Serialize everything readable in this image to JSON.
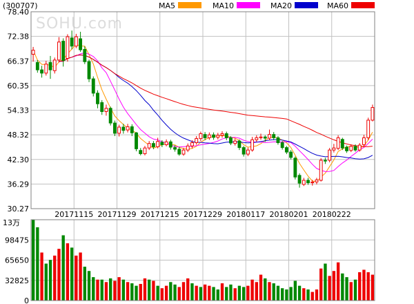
{
  "stock_code": "(300707)",
  "watermark": "SOHU.com",
  "legend": [
    {
      "label": "MA5",
      "color": "#ff9900"
    },
    {
      "label": "MA10",
      "color": "#ff00ff"
    },
    {
      "label": "MA20",
      "color": "#0000cc"
    },
    {
      "label": "MA60",
      "color": "#ee0000"
    }
  ],
  "colors": {
    "up": "#ee0000",
    "down": "#008800",
    "grid": "#c0c0c0",
    "frame": "#808080"
  },
  "chart_data": [
    {
      "type": "candlestick",
      "ylim": [
        30.27,
        78.4
      ],
      "ytick_labels": [
        "78.40",
        "72.38",
        "66.37",
        "60.35",
        "54.33",
        "48.32",
        "42.30",
        "36.29",
        "30.27"
      ],
      "xtick_labels": [
        "20171115",
        "20171129",
        "20171215",
        "20171229",
        "20180117",
        "20180201",
        "20180222"
      ],
      "xtick_indices": [
        10,
        20,
        30,
        40,
        50,
        60,
        70
      ],
      "candles": [
        [
          68.0,
          69.0,
          66.2,
          69.8
        ],
        [
          66.0,
          64.2,
          63.5,
          66.6
        ],
        [
          64.2,
          63.4,
          62.3,
          65.2
        ],
        [
          63.4,
          65.6,
          62.8,
          66.4
        ],
        [
          66.0,
          64.2,
          62.0,
          67.6
        ],
        [
          64.0,
          66.6,
          63.3,
          67.2
        ],
        [
          66.6,
          71.0,
          66.0,
          72.2
        ],
        [
          71.2,
          66.5,
          65.0,
          71.9
        ],
        [
          67.0,
          72.3,
          66.2,
          72.9
        ],
        [
          72.0,
          70.0,
          69.2,
          73.8
        ],
        [
          70.0,
          72.3,
          69.5,
          73.0
        ],
        [
          71.8,
          69.1,
          68.6,
          73.5
        ],
        [
          69.2,
          66.2,
          65.6,
          70.0
        ],
        [
          66.2,
          62.0,
          61.2,
          66.7
        ],
        [
          62.0,
          58.5,
          57.7,
          62.6
        ],
        [
          58.5,
          55.9,
          54.8,
          59.2
        ],
        [
          56.2,
          54.0,
          53.2,
          56.8
        ],
        [
          54.0,
          54.8,
          53.0,
          55.7
        ],
        [
          54.8,
          51.2,
          50.6,
          55.2
        ],
        [
          51.2,
          48.7,
          48.0,
          51.8
        ],
        [
          48.7,
          50.2,
          47.9,
          50.8
        ],
        [
          50.2,
          49.4,
          48.6,
          51.0
        ],
        [
          49.5,
          50.3,
          48.9,
          51.0
        ],
        [
          50.3,
          48.8,
          48.0,
          50.9
        ],
        [
          48.8,
          44.9,
          44.3,
          49.0
        ],
        [
          44.5,
          43.7,
          43.3,
          45.1
        ],
        [
          43.7,
          45.1,
          43.3,
          45.6
        ],
        [
          45.1,
          46.2,
          44.6,
          46.8
        ],
        [
          46.2,
          45.4,
          44.8,
          46.8
        ],
        [
          45.4,
          46.7,
          45.0,
          47.6
        ],
        [
          46.5,
          45.9,
          45.3,
          47.0
        ],
        [
          45.9,
          46.6,
          45.5,
          47.2
        ],
        [
          46.6,
          45.3,
          44.7,
          47.1
        ],
        [
          45.2,
          44.8,
          44.2,
          45.8
        ],
        [
          44.8,
          43.6,
          43.2,
          45.4
        ],
        [
          43.6,
          44.6,
          43.2,
          45.1
        ],
        [
          44.6,
          45.6,
          44.1,
          46.2
        ],
        [
          45.6,
          46.4,
          45.0,
          47.0
        ],
        [
          46.4,
          47.4,
          45.9,
          48.0
        ],
        [
          47.4,
          48.6,
          46.8,
          49.1
        ],
        [
          48.4,
          47.6,
          47.0,
          49.0
        ],
        [
          47.6,
          48.3,
          47.1,
          48.9
        ],
        [
          48.3,
          47.7,
          47.1,
          48.9
        ],
        [
          47.7,
          48.2,
          47.2,
          48.8
        ],
        [
          48.2,
          48.6,
          47.6,
          49.2
        ],
        [
          48.6,
          47.6,
          47.0,
          49.1
        ],
        [
          47.6,
          46.3,
          45.8,
          48.0
        ],
        [
          46.2,
          46.8,
          45.7,
          47.4
        ],
        [
          46.8,
          45.2,
          44.6,
          47.2
        ],
        [
          45.2,
          43.6,
          43.0,
          45.6
        ],
        [
          43.6,
          44.6,
          43.1,
          45.2
        ],
        [
          44.6,
          47.1,
          44.2,
          47.8
        ],
        [
          47.1,
          47.6,
          46.6,
          48.2
        ],
        [
          47.6,
          47.8,
          47.1,
          48.6
        ],
        [
          47.8,
          47.5,
          46.6,
          48.2
        ],
        [
          47.5,
          48.4,
          47.0,
          49.6
        ],
        [
          48.4,
          47.6,
          47.0,
          49.0
        ],
        [
          47.6,
          46.4,
          45.9,
          48.0
        ],
        [
          46.4,
          45.2,
          44.7,
          46.8
        ],
        [
          45.2,
          44.1,
          43.6,
          45.6
        ],
        [
          44.1,
          42.8,
          42.3,
          44.6
        ],
        [
          42.6,
          38.0,
          37.4,
          43.0
        ],
        [
          38.4,
          36.5,
          35.4,
          38.9
        ],
        [
          36.2,
          37.2,
          35.8,
          37.8
        ],
        [
          37.2,
          36.6,
          36.1,
          37.8
        ],
        [
          36.6,
          36.8,
          35.9,
          37.3
        ],
        [
          36.8,
          37.3,
          36.2,
          37.8
        ],
        [
          37.2,
          42.1,
          36.9,
          42.6
        ],
        [
          42.1,
          41.9,
          41.2,
          42.7
        ],
        [
          42.1,
          44.6,
          41.6,
          45.1
        ],
        [
          44.6,
          45.1,
          44.0,
          46.1
        ],
        [
          45.0,
          47.6,
          44.6,
          48.2
        ],
        [
          47.2,
          45.1,
          44.6,
          47.6
        ],
        [
          45.3,
          44.4,
          43.9,
          45.7
        ],
        [
          44.5,
          45.5,
          44.1,
          46.0
        ],
        [
          45.5,
          44.6,
          44.2,
          46.0
        ],
        [
          44.6,
          45.8,
          44.2,
          46.3
        ],
        [
          45.9,
          47.6,
          45.3,
          48.3
        ],
        [
          47.6,
          51.9,
          47.0,
          52.5
        ],
        [
          51.9,
          55.0,
          51.6,
          55.7
        ]
      ]
    },
    {
      "type": "bar",
      "unit_label": "13万",
      "ylim": [
        0,
        131300
      ],
      "ytick_labels": [
        "98475",
        "65650",
        "32825",
        "0"
      ],
      "volumes": [
        [
          131000,
          "down"
        ],
        [
          119000,
          "down"
        ],
        [
          78000,
          "up"
        ],
        [
          60000,
          "down"
        ],
        [
          66000,
          "down"
        ],
        [
          73000,
          "up"
        ],
        [
          84000,
          "up"
        ],
        [
          106000,
          "down"
        ],
        [
          93000,
          "up"
        ],
        [
          86000,
          "down"
        ],
        [
          73000,
          "up"
        ],
        [
          78000,
          "up"
        ],
        [
          55000,
          "down"
        ],
        [
          48000,
          "down"
        ],
        [
          38000,
          "down"
        ],
        [
          34000,
          "up"
        ],
        [
          34000,
          "down"
        ],
        [
          30000,
          "up"
        ],
        [
          36000,
          "down"
        ],
        [
          32000,
          "up"
        ],
        [
          38000,
          "up"
        ],
        [
          34000,
          "down"
        ],
        [
          30000,
          "up"
        ],
        [
          28000,
          "down"
        ],
        [
          24000,
          "down"
        ],
        [
          27000,
          "up"
        ],
        [
          36000,
          "up"
        ],
        [
          34000,
          "down"
        ],
        [
          32000,
          "up"
        ],
        [
          24000,
          "down"
        ],
        [
          20000,
          "up"
        ],
        [
          24000,
          "up"
        ],
        [
          30000,
          "down"
        ],
        [
          26000,
          "down"
        ],
        [
          22000,
          "up"
        ],
        [
          30000,
          "up"
        ],
        [
          36000,
          "up"
        ],
        [
          28000,
          "down"
        ],
        [
          24000,
          "up"
        ],
        [
          22000,
          "down"
        ],
        [
          26000,
          "up"
        ],
        [
          24000,
          "up"
        ],
        [
          22000,
          "down"
        ],
        [
          18000,
          "down"
        ],
        [
          28000,
          "up"
        ],
        [
          22000,
          "down"
        ],
        [
          26000,
          "down"
        ],
        [
          20000,
          "up"
        ],
        [
          24000,
          "down"
        ],
        [
          22000,
          "down"
        ],
        [
          24000,
          "up"
        ],
        [
          34000,
          "up"
        ],
        [
          30000,
          "up"
        ],
        [
          42000,
          "up"
        ],
        [
          36000,
          "down"
        ],
        [
          30000,
          "up"
        ],
        [
          28000,
          "down"
        ],
        [
          24000,
          "down"
        ],
        [
          20000,
          "down"
        ],
        [
          18000,
          "down"
        ],
        [
          22000,
          "down"
        ],
        [
          32000,
          "down"
        ],
        [
          24000,
          "down"
        ],
        [
          20000,
          "up"
        ],
        [
          18000,
          "down"
        ],
        [
          14000,
          "up"
        ],
        [
          18000,
          "up"
        ],
        [
          52000,
          "up"
        ],
        [
          60000,
          "down"
        ],
        [
          40000,
          "up"
        ],
        [
          48000,
          "up"
        ],
        [
          62000,
          "up"
        ],
        [
          44000,
          "down"
        ],
        [
          38000,
          "down"
        ],
        [
          30000,
          "up"
        ],
        [
          34000,
          "down"
        ],
        [
          46000,
          "up"
        ],
        [
          50000,
          "up"
        ],
        [
          46000,
          "up"
        ],
        [
          42000,
          "up"
        ]
      ]
    }
  ]
}
